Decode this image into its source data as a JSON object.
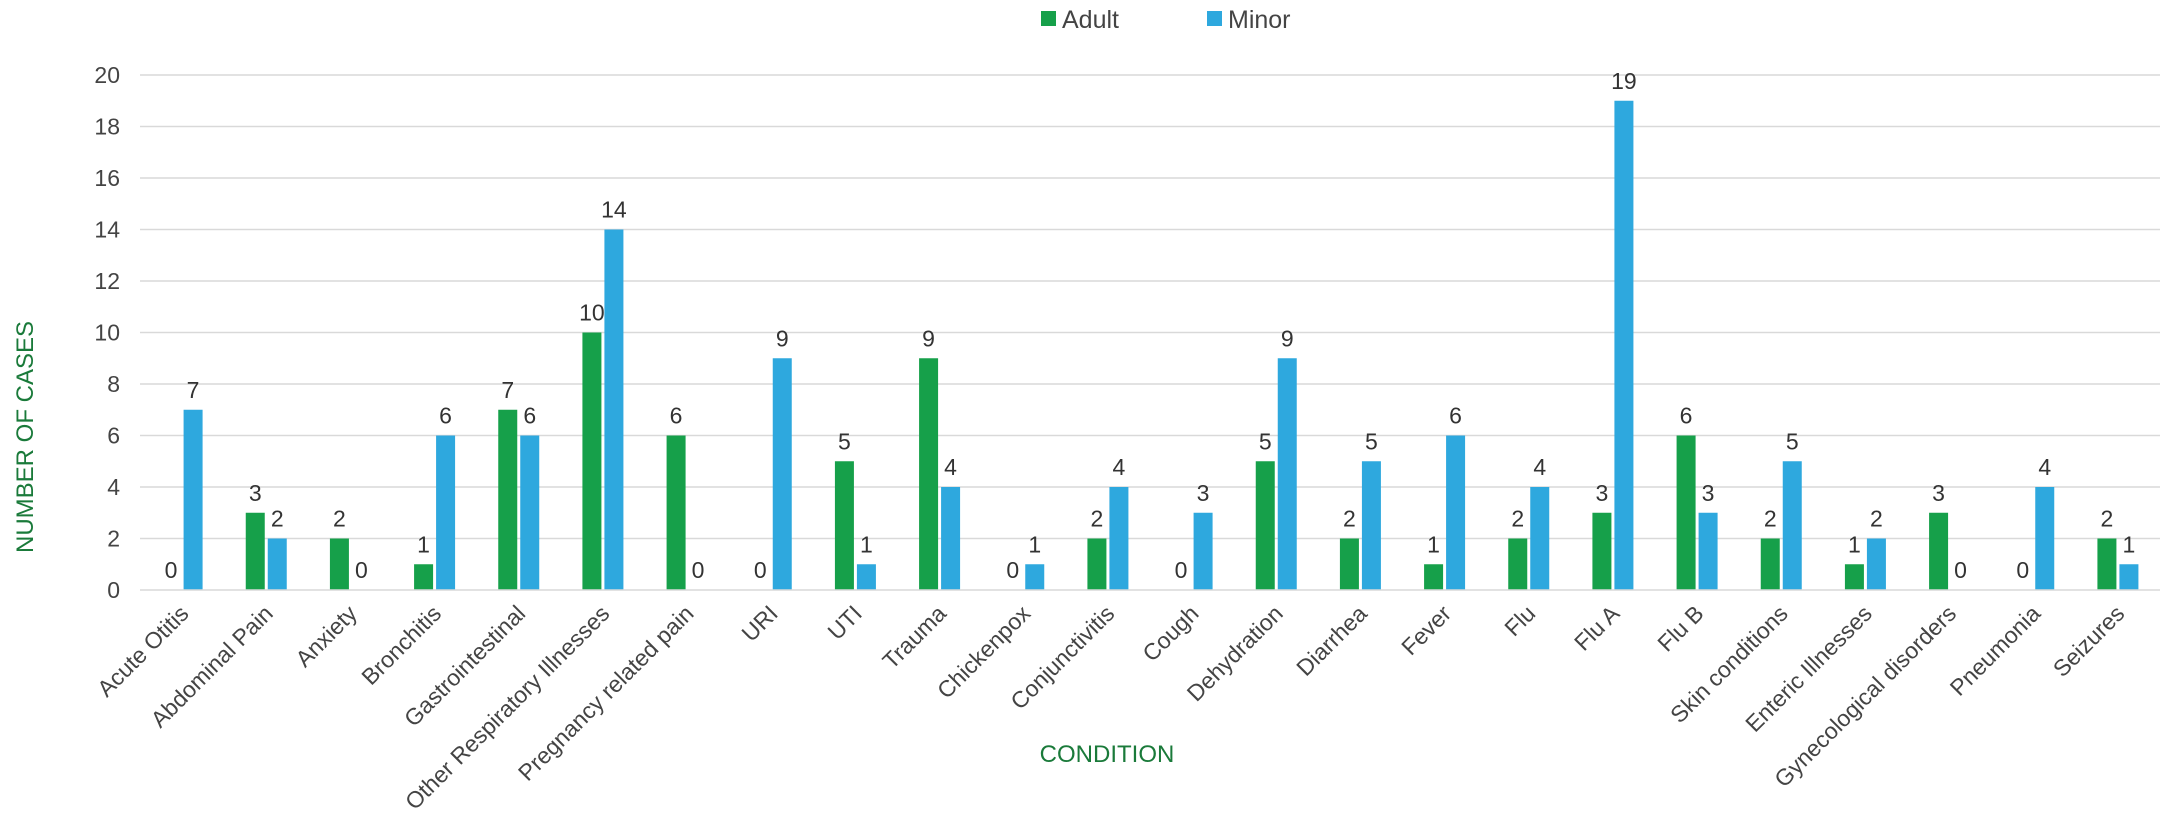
{
  "chart_data": {
    "type": "bar",
    "title": "",
    "xlabel": "CONDITION",
    "ylabel": "NUMBER OF CASES",
    "ylim": [
      0,
      20
    ],
    "yticks": [
      0,
      2,
      4,
      6,
      8,
      10,
      12,
      14,
      16,
      18,
      20
    ],
    "grid": true,
    "legend_position": "top-center",
    "axis_title_color": "#1a7a3a",
    "categories": [
      "Acute Otitis",
      "Abdominal Pain",
      "Anxiety",
      "Bronchitis",
      "Gastrointestinal",
      "Other Respiratory Illnesses",
      "Pregnancy related pain",
      "URI",
      "UTI",
      "Trauma",
      "Chickenpox",
      "Conjunctivitis",
      "Cough",
      "Dehydration",
      "Diarrhea",
      "Fever",
      "Flu",
      "Flu A",
      "Flu B",
      "Skin conditions",
      "Enteric Illnesses",
      "Gynecological disorders",
      "Pneumonia",
      "Seizures"
    ],
    "series": [
      {
        "name": "Adult",
        "color": "#16a04a",
        "values": [
          0,
          3,
          2,
          1,
          7,
          10,
          6,
          0,
          5,
          9,
          0,
          2,
          0,
          5,
          2,
          1,
          2,
          3,
          6,
          2,
          1,
          3,
          0,
          2
        ]
      },
      {
        "name": "Minor",
        "color": "#2ea8de",
        "values": [
          7,
          2,
          0,
          6,
          6,
          14,
          0,
          9,
          1,
          4,
          1,
          4,
          3,
          9,
          5,
          6,
          4,
          19,
          3,
          5,
          2,
          0,
          4,
          1
        ]
      }
    ]
  }
}
